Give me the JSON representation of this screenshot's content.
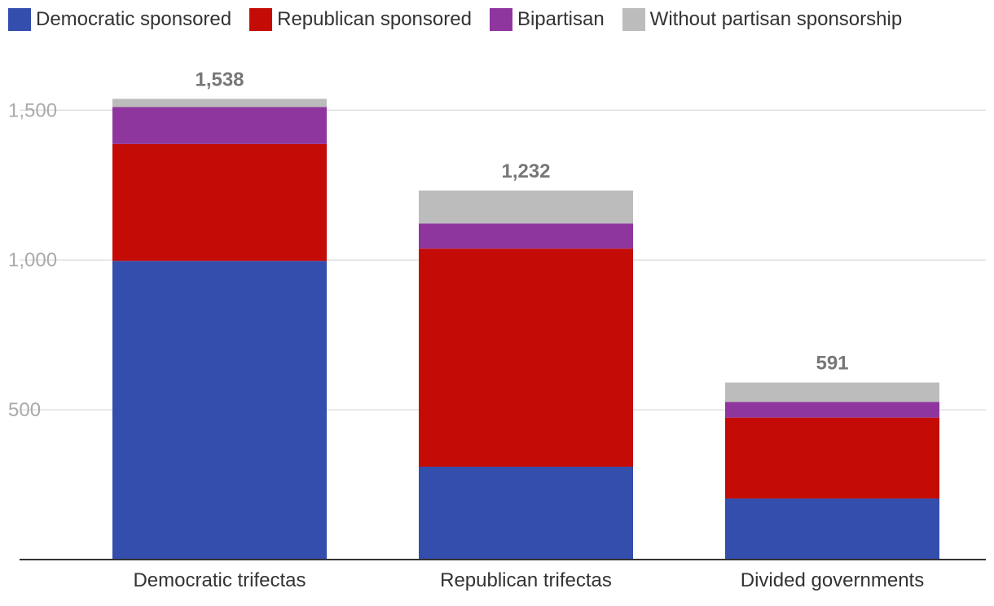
{
  "colors": {
    "democratic": "#344ead",
    "republican": "#c40b05",
    "bipartisan": "#8f369e",
    "none": "#bcbcbc",
    "grid": "#e0e0e0",
    "axis": "#333333"
  },
  "legend": [
    {
      "label": "Democratic sponsored",
      "color_key": "democratic"
    },
    {
      "label": "Republican sponsored",
      "color_key": "republican"
    },
    {
      "label": "Bipartisan",
      "color_key": "bipartisan"
    },
    {
      "label": "Without partisan sponsorship",
      "color_key": "none"
    }
  ],
  "chart_data": {
    "type": "bar",
    "stacked": true,
    "title": "",
    "xlabel": "",
    "ylabel": "",
    "ylim": [
      0,
      1500
    ],
    "yticks": [
      500,
      1000,
      1500
    ],
    "ytick_labels": [
      "500",
      "1,000",
      "1,500"
    ],
    "grid": true,
    "legend_position": "top-left",
    "categories": [
      "Democratic trifectas",
      "Republican trifectas",
      "Divided governments"
    ],
    "totals": [
      1538,
      1232,
      591
    ],
    "total_labels": [
      "1,538",
      "1,232",
      "591"
    ],
    "series": [
      {
        "name": "Democratic sponsored",
        "color_key": "democratic",
        "values": [
          997,
          310,
          204
        ]
      },
      {
        "name": "Republican sponsored",
        "color_key": "republican",
        "values": [
          390,
          728,
          270
        ]
      },
      {
        "name": "Bipartisan",
        "color_key": "bipartisan",
        "values": [
          124,
          84,
          52
        ]
      },
      {
        "name": "Without partisan sponsorship",
        "color_key": "none",
        "values": [
          27,
          110,
          65
        ]
      }
    ]
  }
}
